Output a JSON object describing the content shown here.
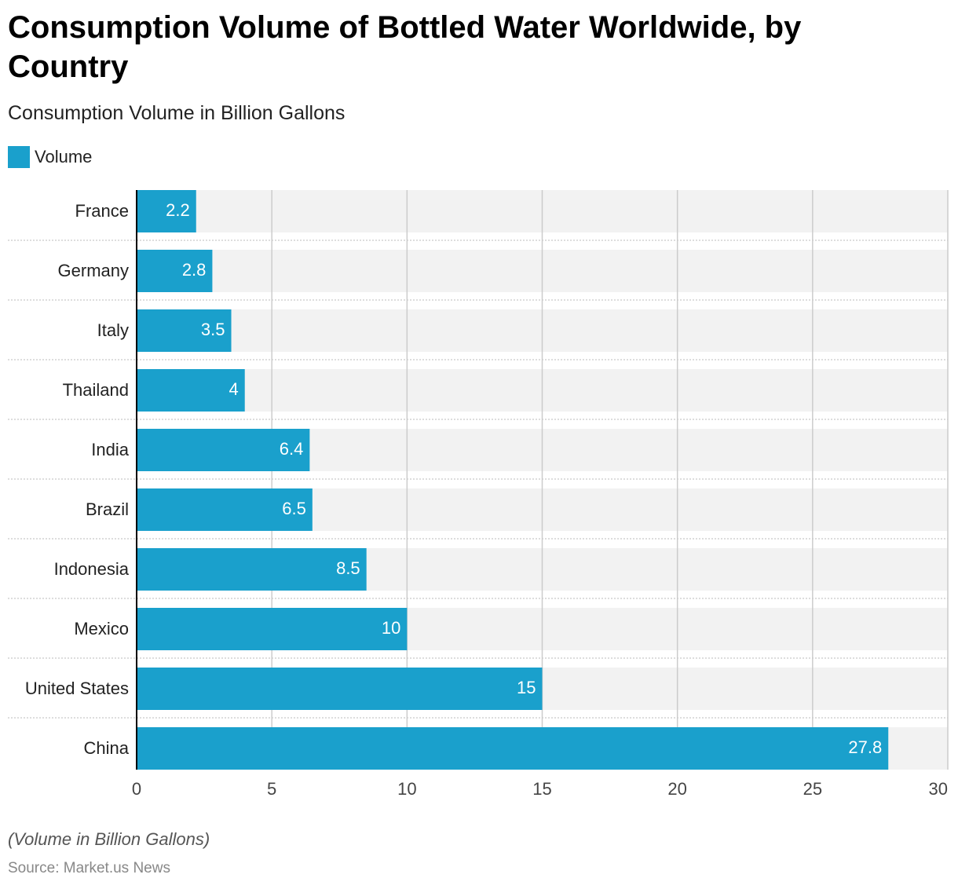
{
  "chart_data": {
    "type": "bar",
    "orientation": "horizontal",
    "title": "Consumption Volume of Bottled Water Worldwide, by Country",
    "subtitle": "Consumption Volume in Billion Gallons",
    "categories": [
      "France",
      "Germany",
      "Italy",
      "Thailand",
      "India",
      "Brazil",
      "Indonesia",
      "Mexico",
      "United States",
      "China"
    ],
    "series": [
      {
        "name": "Volume",
        "color": "#1aa0cc",
        "values": [
          2.2,
          2.8,
          3.5,
          4,
          6.4,
          6.5,
          8.5,
          10,
          15,
          27.8
        ]
      }
    ],
    "xlim": [
      0,
      30
    ],
    "xticks": [
      0,
      5,
      10,
      15,
      20,
      25,
      30
    ],
    "grid": true,
    "note": "(Volume in Billion Gallons)",
    "source": "Source: Market.us News"
  }
}
